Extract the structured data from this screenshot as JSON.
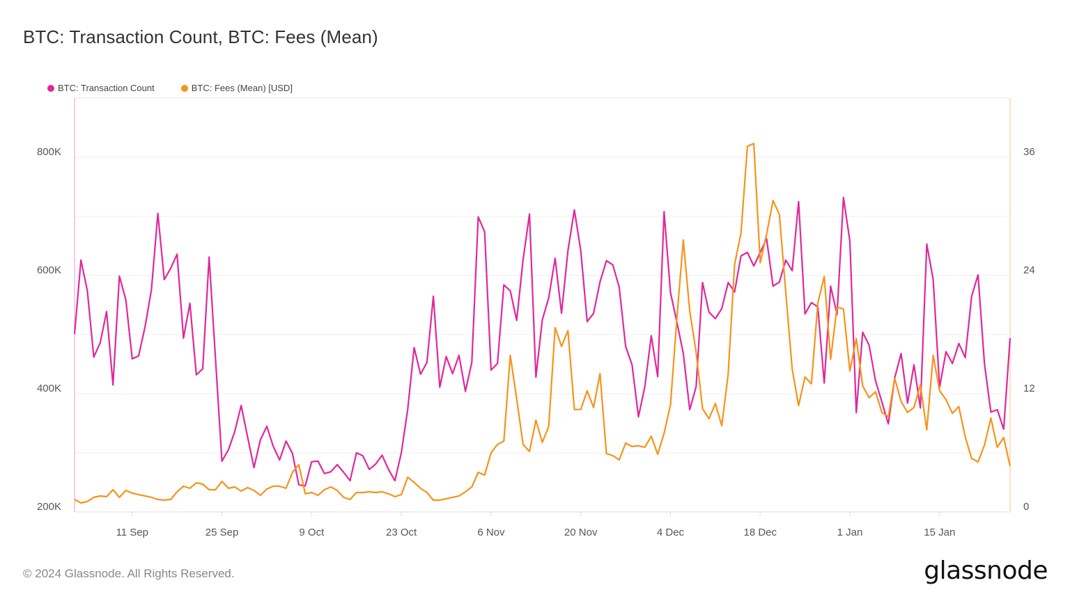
{
  "header": {
    "title": "BTC: Transaction Count, BTC: Fees (Mean)"
  },
  "footer": {
    "copyright": "© 2024 Glassnode. All Rights Reserved.",
    "logo": "glassnode"
  },
  "colors": {
    "transaction_count": "#e0279b",
    "fees": "#f7931a",
    "grid": "#ececec"
  },
  "chart_data": {
    "type": "line",
    "title": "BTC: Transaction Count, BTC: Fees (Mean)",
    "grid": true,
    "legend_placement": "top-left",
    "x": [
      "2023-09-02",
      "2023-09-03",
      "2023-09-04",
      "2023-09-05",
      "2023-09-06",
      "2023-09-07",
      "2023-09-08",
      "2023-09-09",
      "2023-09-10",
      "2023-09-11",
      "2023-09-12",
      "2023-09-13",
      "2023-09-14",
      "2023-09-15",
      "2023-09-16",
      "2023-09-17",
      "2023-09-18",
      "2023-09-19",
      "2023-09-20",
      "2023-09-21",
      "2023-09-22",
      "2023-09-23",
      "2023-09-24",
      "2023-09-25",
      "2023-09-26",
      "2023-09-27",
      "2023-09-28",
      "2023-09-29",
      "2023-09-30",
      "2023-10-01",
      "2023-10-02",
      "2023-10-03",
      "2023-10-04",
      "2023-10-05",
      "2023-10-06",
      "2023-10-07",
      "2023-10-08",
      "2023-10-09",
      "2023-10-10",
      "2023-10-11",
      "2023-10-12",
      "2023-10-13",
      "2023-10-14",
      "2023-10-15",
      "2023-10-16",
      "2023-10-17",
      "2023-10-18",
      "2023-10-19",
      "2023-10-20",
      "2023-10-21",
      "2023-10-22",
      "2023-10-23",
      "2023-10-24",
      "2023-10-25",
      "2023-10-26",
      "2023-10-27",
      "2023-10-28",
      "2023-10-29",
      "2023-10-30",
      "2023-10-31",
      "2023-11-01",
      "2023-11-02",
      "2023-11-03",
      "2023-11-04",
      "2023-11-05",
      "2023-11-06",
      "2023-11-07",
      "2023-11-08",
      "2023-11-09",
      "2023-11-10",
      "2023-11-11",
      "2023-11-12",
      "2023-11-13",
      "2023-11-14",
      "2023-11-15",
      "2023-11-16",
      "2023-11-17",
      "2023-11-18",
      "2023-11-19",
      "2023-11-20",
      "2023-11-21",
      "2023-11-22",
      "2023-11-23",
      "2023-11-24",
      "2023-11-25",
      "2023-11-26",
      "2023-11-27",
      "2023-11-28",
      "2023-11-29",
      "2023-11-30",
      "2023-12-01",
      "2023-12-02",
      "2023-12-03",
      "2023-12-04",
      "2023-12-05",
      "2023-12-06",
      "2023-12-07",
      "2023-12-08",
      "2023-12-09",
      "2023-12-10",
      "2023-12-11",
      "2023-12-12",
      "2023-12-13",
      "2023-12-14",
      "2023-12-15",
      "2023-12-16",
      "2023-12-17",
      "2023-12-18",
      "2023-12-19",
      "2023-12-20",
      "2023-12-21",
      "2023-12-22",
      "2023-12-23",
      "2023-12-24",
      "2023-12-25",
      "2023-12-26",
      "2023-12-27",
      "2023-12-28",
      "2023-12-29",
      "2023-12-30",
      "2023-12-31",
      "2024-01-01",
      "2024-01-02",
      "2024-01-03",
      "2024-01-04",
      "2024-01-05",
      "2024-01-06",
      "2024-01-07",
      "2024-01-08",
      "2024-01-09",
      "2024-01-10",
      "2024-01-11",
      "2024-01-12",
      "2024-01-13",
      "2024-01-14",
      "2024-01-15",
      "2024-01-16",
      "2024-01-17",
      "2024-01-18",
      "2024-01-19",
      "2024-01-20",
      "2024-01-21",
      "2024-01-22",
      "2024-01-23",
      "2024-01-24",
      "2024-01-25",
      "2024-01-26"
    ],
    "x_ticks": [
      {
        "label": "11 Sep",
        "date": "2023-09-11"
      },
      {
        "label": "25 Sep",
        "date": "2023-09-25"
      },
      {
        "label": "9 Oct",
        "date": "2023-10-09"
      },
      {
        "label": "23 Oct",
        "date": "2023-10-23"
      },
      {
        "label": "6 Nov",
        "date": "2023-11-06"
      },
      {
        "label": "20 Nov",
        "date": "2023-11-20"
      },
      {
        "label": "4 Dec",
        "date": "2023-12-04"
      },
      {
        "label": "18 Dec",
        "date": "2023-12-18"
      },
      {
        "label": "1 Jan",
        "date": "2024-01-01"
      },
      {
        "label": "15 Jan",
        "date": "2024-01-15"
      }
    ],
    "y_left": {
      "lim": [
        200000,
        900000
      ],
      "ticks": [
        {
          "label": "200K",
          "value": 200000
        },
        {
          "label": "400K",
          "value": 400000
        },
        {
          "label": "600K",
          "value": 600000
        },
        {
          "label": "800K",
          "value": 800000
        }
      ],
      "gridlines": [
        200000,
        300000,
        400000,
        500000,
        600000,
        700000,
        800000
      ]
    },
    "y_right": {
      "lim": [
        0,
        42
      ],
      "ticks": [
        {
          "label": "0",
          "value": 0
        },
        {
          "label": "12",
          "value": 12
        },
        {
          "label": "24",
          "value": 24
        },
        {
          "label": "36",
          "value": 36
        }
      ]
    },
    "series": [
      {
        "name": "BTC: Transaction Count",
        "axis": "left",
        "color": "#e0279b",
        "values": [
          501000,
          626000,
          574000,
          462000,
          486000,
          539000,
          415000,
          599000,
          559000,
          459000,
          464000,
          513000,
          576000,
          705000,
          593000,
          612000,
          636000,
          494000,
          553000,
          432000,
          442000,
          631000,
          458000,
          286000,
          305000,
          336000,
          380000,
          327000,
          275000,
          322000,
          345000,
          311000,
          288000,
          320000,
          299000,
          246000,
          244000,
          285000,
          286000,
          265000,
          268000,
          280000,
          267000,
          253000,
          300000,
          295000,
          272000,
          281000,
          296000,
          272000,
          253000,
          300000,
          374000,
          478000,
          433000,
          453000,
          565000,
          411000,
          463000,
          434000,
          465000,
          404000,
          453000,
          699000,
          674000,
          440000,
          451000,
          584000,
          574000,
          524000,
          627000,
          704000,
          428000,
          525000,
          562000,
          629000,
          536000,
          642000,
          711000,
          642000,
          522000,
          536000,
          589000,
          625000,
          618000,
          580000,
          480000,
          449000,
          361000,
          412000,
          498000,
          429000,
          708000,
          571000,
          521000,
          468000,
          373000,
          412000,
          588000,
          538000,
          527000,
          544000,
          588000,
          572000,
          633000,
          639000,
          616000,
          639000,
          662000,
          582000,
          589000,
          626000,
          608000,
          725000,
          535000,
          554000,
          547000,
          418000,
          582000,
          534000,
          732000,
          658000,
          368000,
          504000,
          482000,
          422000,
          386000,
          349000,
          427000,
          468000,
          384000,
          449000,
          376000,
          653000,
          593000,
          411000,
          471000,
          451000,
          485000,
          461000,
          565000,
          601000,
          451000,
          369000,
          373000,
          340000,
          494000
        ]
      },
      {
        "name": "BTC: Fees (Mean) [USD]",
        "axis": "right",
        "color": "#f7931a",
        "values": [
          1.27,
          0.92,
          1.06,
          1.48,
          1.62,
          1.55,
          2.26,
          1.48,
          2.19,
          1.91,
          1.76,
          1.62,
          1.48,
          1.27,
          1.2,
          1.27,
          2.05,
          2.61,
          2.4,
          2.96,
          2.82,
          2.26,
          2.26,
          3.11,
          2.4,
          2.54,
          2.12,
          2.47,
          2.19,
          1.69,
          2.33,
          2.61,
          2.61,
          2.4,
          4.02,
          4.8,
          1.84,
          1.98,
          1.69,
          2.26,
          2.54,
          2.19,
          1.48,
          1.27,
          1.98,
          1.98,
          2.05,
          1.98,
          2.05,
          1.84,
          1.55,
          1.76,
          3.53,
          3.0,
          2.4,
          1.98,
          1.2,
          1.2,
          1.34,
          1.48,
          1.62,
          2.05,
          2.54,
          4.02,
          3.74,
          6.0,
          6.85,
          7.2,
          15.88,
          11.5,
          6.85,
          6.14,
          9.32,
          7.06,
          8.68,
          18.7,
          16.8,
          18.4,
          10.4,
          10.4,
          12.3,
          10.6,
          14.05,
          5.93,
          5.72,
          5.29,
          6.99,
          6.64,
          6.71,
          6.56,
          7.69,
          5.86,
          7.98,
          10.87,
          19.7,
          27.6,
          20.4,
          16.2,
          10.5,
          9.46,
          11.0,
          8.75,
          14.0,
          25.1,
          28.3,
          37.1,
          37.4,
          25.3,
          28.2,
          31.6,
          30.2,
          22.3,
          14.5,
          10.8,
          13.7,
          13.0,
          21.2,
          23.9,
          15.5,
          20.8,
          20.6,
          14.3,
          17.6,
          12.8,
          11.6,
          12.2,
          10.1,
          9.67,
          13.55,
          11.2,
          10.1,
          10.6,
          12.9,
          8.33,
          15.9,
          12.3,
          11.4,
          10.0,
          10.7,
          7.62,
          5.44,
          5.08,
          6.78,
          9.53,
          6.56,
          7.55,
          4.66
        ]
      }
    ]
  }
}
